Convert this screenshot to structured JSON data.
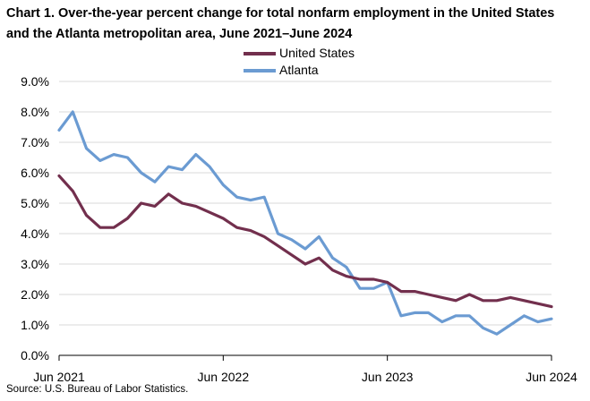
{
  "chart_data": {
    "type": "line",
    "title": "Chart 1. Over-the-year percent change for total nonfarm employment in the United States and the Atlanta metropolitan area, June 2021–June 2024",
    "xlabel": "",
    "ylabel": "",
    "ylim": [
      0,
      9
    ],
    "yticks": [
      "0.0%",
      "1.0%",
      "2.0%",
      "3.0%",
      "4.0%",
      "5.0%",
      "6.0%",
      "7.0%",
      "8.0%",
      "9.0%"
    ],
    "xtick_labels": [
      "Jun 2021",
      "Jun 2022",
      "Jun 2023",
      "Jun 2024"
    ],
    "x": [
      "Jun 2021",
      "Jul 2021",
      "Aug 2021",
      "Sep 2021",
      "Oct 2021",
      "Nov 2021",
      "Dec 2021",
      "Jan 2022",
      "Feb 2022",
      "Mar 2022",
      "Apr 2022",
      "May 2022",
      "Jun 2022",
      "Jul 2022",
      "Aug 2022",
      "Sep 2022",
      "Oct 2022",
      "Nov 2022",
      "Dec 2022",
      "Jan 2023",
      "Feb 2023",
      "Mar 2023",
      "Apr 2023",
      "May 2023",
      "Jun 2023",
      "Jul 2023",
      "Aug 2023",
      "Sep 2023",
      "Oct 2023",
      "Nov 2023",
      "Dec 2023",
      "Jan 2024",
      "Feb 2024",
      "Mar 2024",
      "Apr 2024",
      "May 2024",
      "Jun 2024"
    ],
    "grid": true,
    "legend_position": "top-center",
    "series": [
      {
        "name": "United States",
        "color": "#722f4d",
        "values": [
          5.9,
          5.4,
          4.6,
          4.2,
          4.2,
          4.5,
          5.0,
          4.9,
          5.3,
          5.0,
          4.9,
          4.7,
          4.5,
          4.2,
          4.1,
          3.9,
          3.6,
          3.3,
          3.0,
          3.2,
          2.8,
          2.6,
          2.5,
          2.5,
          2.4,
          2.1,
          2.1,
          2.0,
          1.9,
          1.8,
          2.0,
          1.8,
          1.8,
          1.9,
          1.8,
          1.7,
          1.6
        ]
      },
      {
        "name": "Atlanta",
        "color": "#6b9bd2",
        "values": [
          7.4,
          8.0,
          6.8,
          6.4,
          6.6,
          6.5,
          6.0,
          5.7,
          6.2,
          6.1,
          6.6,
          6.2,
          5.6,
          5.2,
          5.1,
          5.2,
          4.0,
          3.8,
          3.5,
          3.9,
          3.2,
          2.9,
          2.2,
          2.2,
          2.4,
          1.3,
          1.4,
          1.4,
          1.1,
          1.3,
          1.3,
          0.9,
          0.7,
          1.0,
          1.3,
          1.1,
          1.2
        ]
      }
    ]
  },
  "source_note": "Source: U.S. Bureau of Labor Statistics."
}
